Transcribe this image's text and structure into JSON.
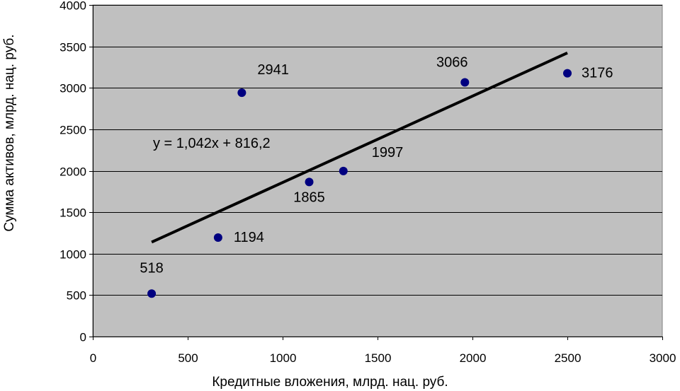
{
  "chart_data": {
    "type": "scatter",
    "xlabel": "Кредитные вложения, млрд. нац. руб.",
    "ylabel": "Сумма активов, млрд. нац. руб.",
    "xlim": [
      0,
      3000
    ],
    "ylim": [
      0,
      4000
    ],
    "xticks": [
      0,
      500,
      1000,
      1500,
      2000,
      2500,
      3000
    ],
    "yticks": [
      0,
      500,
      1000,
      1500,
      2000,
      2500,
      3000,
      3500,
      4000
    ],
    "grid": "horizontal",
    "legend": "none",
    "points": [
      {
        "x": 310,
        "y": 518,
        "label": "518"
      },
      {
        "x": 660,
        "y": 1194,
        "label": "1194"
      },
      {
        "x": 785,
        "y": 2941,
        "label": "2941"
      },
      {
        "x": 1140,
        "y": 1865,
        "label": "1865"
      },
      {
        "x": 1320,
        "y": 1997,
        "label": "1997"
      },
      {
        "x": 1960,
        "y": 3066,
        "label": "3066"
      },
      {
        "x": 2500,
        "y": 3176,
        "label": "3176"
      }
    ],
    "trendline": {
      "slope": 1.042,
      "intercept": 816.2,
      "x_start": 310,
      "x_end": 2500
    },
    "equation": "y = 1,042x + 816,2",
    "colors": {
      "plot_bg": "#c0c0c0",
      "point": "#000080",
      "trendline": "#000000",
      "grid": "#000000"
    }
  }
}
